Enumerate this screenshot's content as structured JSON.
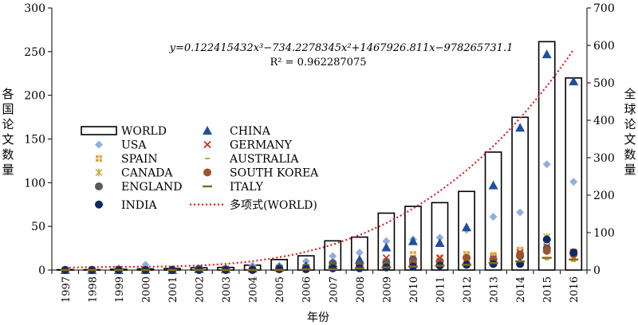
{
  "chart_data": {
    "type": "bar",
    "x_title": "年份",
    "y_left_title": "各国论文数量",
    "y_right_title": "全球论文数量",
    "categories": [
      "1997",
      "1998",
      "1999",
      "2000",
      "2001",
      "2002",
      "2003",
      "2004",
      "2005",
      "2006",
      "2007",
      "2008",
      "2009",
      "2010",
      "2011",
      "2012",
      "2013",
      "2014",
      "2015",
      "2016"
    ],
    "y_left": {
      "min": 0,
      "max": 300,
      "ticks": [
        "0",
        "50",
        "100",
        "150",
        "200",
        "250",
        "300"
      ]
    },
    "y_right": {
      "min": 0,
      "max": 700,
      "ticks": [
        "0",
        "100",
        "200",
        "300",
        "400",
        "500",
        "600",
        "700"
      ]
    },
    "world": {
      "name": "WORLD",
      "axis": "right",
      "values": [
        1,
        1,
        2,
        3,
        4,
        6,
        7,
        13,
        28,
        38,
        78,
        88,
        152,
        170,
        180,
        210,
        315,
        408,
        610,
        513
      ]
    },
    "countries": [
      {
        "name": "USA",
        "marker": "diamond",
        "color": "#8fb0de",
        "values": [
          0,
          0,
          2,
          6,
          1,
          2,
          2,
          5,
          5,
          10,
          16,
          20,
          33,
          35,
          37,
          46,
          61,
          66,
          121,
          101
        ]
      },
      {
        "name": "CHINA",
        "marker": "triangle",
        "color": "#1f4fa0",
        "values": [
          0,
          0,
          0,
          0,
          0,
          1,
          1,
          2,
          3,
          5,
          8,
          12,
          26,
          33,
          31,
          49,
          97,
          163,
          247,
          216
        ]
      },
      {
        "name": "SPAIN",
        "marker": "plus",
        "color": "#e8a13c",
        "values": [
          0,
          0,
          0,
          0,
          0,
          0,
          0,
          1,
          1,
          2,
          5,
          5,
          10,
          18,
          14,
          18,
          17,
          23,
          25,
          21
        ]
      },
      {
        "name": "GERMANY",
        "marker": "x",
        "color": "#d62020",
        "values": [
          0,
          0,
          1,
          0,
          0,
          1,
          1,
          1,
          2,
          3,
          4,
          4,
          14,
          10,
          14,
          12,
          13,
          20,
          27,
          20
        ]
      },
      {
        "name": "CANADA",
        "marker": "star",
        "color": "#c8a830",
        "values": [
          0,
          0,
          0,
          0,
          0,
          0,
          0,
          1,
          1,
          2,
          3,
          3,
          6,
          9,
          9,
          9,
          15,
          12,
          38,
          15
        ]
      },
      {
        "name": "AUSTRALIA",
        "marker": "dash",
        "color": "#8fbf3f",
        "values": [
          0,
          0,
          0,
          0,
          0,
          0,
          0,
          0,
          1,
          1,
          2,
          3,
          4,
          5,
          6,
          7,
          8,
          10,
          12,
          10
        ]
      },
      {
        "name": "ENGLAND",
        "marker": "circle",
        "color": "#5a5a5a",
        "values": [
          0,
          0,
          0,
          0,
          0,
          1,
          1,
          1,
          2,
          3,
          8,
          6,
          9,
          12,
          10,
          14,
          12,
          16,
          25,
          20
        ]
      },
      {
        "name": "SOUTH KOREA",
        "marker": "circle",
        "color": "#a0522d",
        "values": [
          0,
          0,
          0,
          0,
          0,
          0,
          0,
          0,
          1,
          1,
          2,
          3,
          5,
          8,
          10,
          14,
          12,
          18,
          22,
          18
        ]
      },
      {
        "name": "INDIA",
        "marker": "circle",
        "color": "#0e2a66",
        "values": [
          0,
          0,
          0,
          0,
          0,
          0,
          0,
          0,
          1,
          1,
          2,
          2,
          3,
          4,
          5,
          6,
          7,
          7,
          35,
          20
        ]
      },
      {
        "name": "ITALY",
        "marker": "hbar",
        "color": "#8a6a10",
        "values": [
          0,
          0,
          0,
          0,
          0,
          0,
          0,
          0,
          0,
          1,
          1,
          2,
          3,
          4,
          5,
          6,
          8,
          10,
          14,
          12
        ]
      }
    ],
    "trendline": {
      "name": "多项式(WORLD)",
      "color": "#d62020",
      "coeffs": [
        0.122415432,
        -734.2278345,
        1467926.811,
        -978265731.1
      ]
    },
    "equation_label": "y=0.122415432x³−734.2278345x²+1467926.811x−978265731.1",
    "r2_label": "R² = 0.962287075"
  }
}
